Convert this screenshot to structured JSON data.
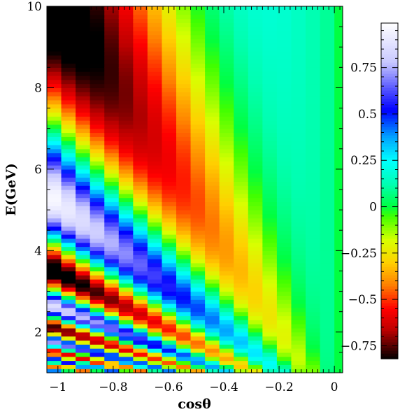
{
  "chart_data": {
    "type": "heatmap",
    "title": "",
    "xlabel": "cosθ",
    "ylabel": "E(GeV)",
    "xlim": [
      -1.04,
      0.03
    ],
    "ylim": [
      1.0,
      10.0
    ],
    "zlim": [
      -0.82,
      0.99
    ],
    "x_bins": {
      "start": -1.04,
      "end": 0.0,
      "count": 20
    },
    "y_bins": {
      "start": 1.0,
      "end": 10.0,
      "count": 90
    },
    "x_ticks": [
      {
        "value": -1.0,
        "label": "−1"
      },
      {
        "value": -0.8,
        "label": "−0.8"
      },
      {
        "value": -0.6,
        "label": "−0.6"
      },
      {
        "value": -0.4,
        "label": "−0.4"
      },
      {
        "value": -0.2,
        "label": "−0.2"
      },
      {
        "value": 0.0,
        "label": "0"
      }
    ],
    "y_ticks": [
      {
        "value": 2,
        "label": "2"
      },
      {
        "value": 4,
        "label": "4"
      },
      {
        "value": 6,
        "label": "6"
      },
      {
        "value": 8,
        "label": "8"
      },
      {
        "value": 10,
        "label": "10"
      }
    ],
    "colorbar_ticks": [
      {
        "value": 0.75,
        "label": "0.75"
      },
      {
        "value": 0.5,
        "label": "0.5"
      },
      {
        "value": 0.25,
        "label": "0.25"
      },
      {
        "value": 0.0,
        "label": "0"
      },
      {
        "value": -0.25,
        "label": "−0.25"
      },
      {
        "value": -0.5,
        "label": "−0.5"
      },
      {
        "value": -0.75,
        "label": "−0.75"
      }
    ],
    "colormap": [
      {
        "v": -0.82,
        "color": "#000000"
      },
      {
        "v": -0.66,
        "color": "#c00000"
      },
      {
        "v": -0.55,
        "color": "#ff0000"
      },
      {
        "v": -0.42,
        "color": "#ff8000"
      },
      {
        "v": -0.3,
        "color": "#ffd000"
      },
      {
        "v": -0.18,
        "color": "#d8ff00"
      },
      {
        "v": -0.05,
        "color": "#40ff00"
      },
      {
        "v": 0.0,
        "color": "#00ff40"
      },
      {
        "v": 0.12,
        "color": "#00ffb0"
      },
      {
        "v": 0.25,
        "color": "#00ffff"
      },
      {
        "v": 0.38,
        "color": "#00a0ff"
      },
      {
        "v": 0.52,
        "color": "#0000ff"
      },
      {
        "v": 0.63,
        "color": "#5050ff"
      },
      {
        "v": 0.78,
        "color": "#c8c8ff"
      },
      {
        "v": 0.99,
        "color": "#ffffff"
      }
    ],
    "z_model": "z = amplitude * cos(2.55 * L_over_E), L = 12800*|cosθ|, amplitude grows with |cosθ|, 0.03 GeV^-1 blur",
    "legend": "right colorbar"
  }
}
